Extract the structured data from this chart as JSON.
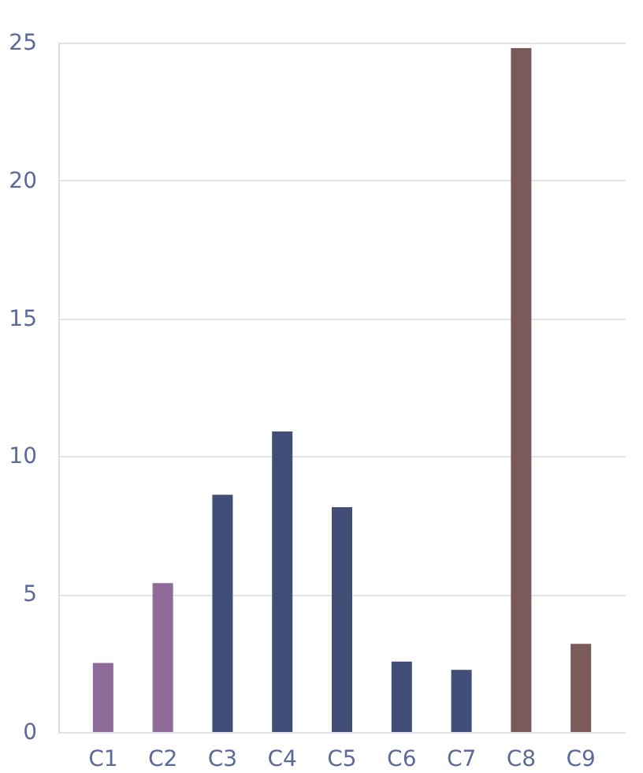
{
  "chart_data": {
    "type": "bar",
    "categories": [
      "C1",
      "C2",
      "C3",
      "C4",
      "C5",
      "C6",
      "C7",
      "C8",
      "C9"
    ],
    "values": [
      2.5,
      5.4,
      8.6,
      10.9,
      8.15,
      2.55,
      2.25,
      24.8,
      3.2
    ],
    "colors": [
      "#8e6b98",
      "#8e6b98",
      "#404e78",
      "#404e78",
      "#404e78",
      "#404e78",
      "#404e78",
      "#7b5a5a",
      "#7b5a5a"
    ],
    "ylim": [
      0,
      25
    ],
    "yticks": [
      0,
      5,
      10,
      15,
      20,
      25
    ],
    "grid": "y"
  }
}
